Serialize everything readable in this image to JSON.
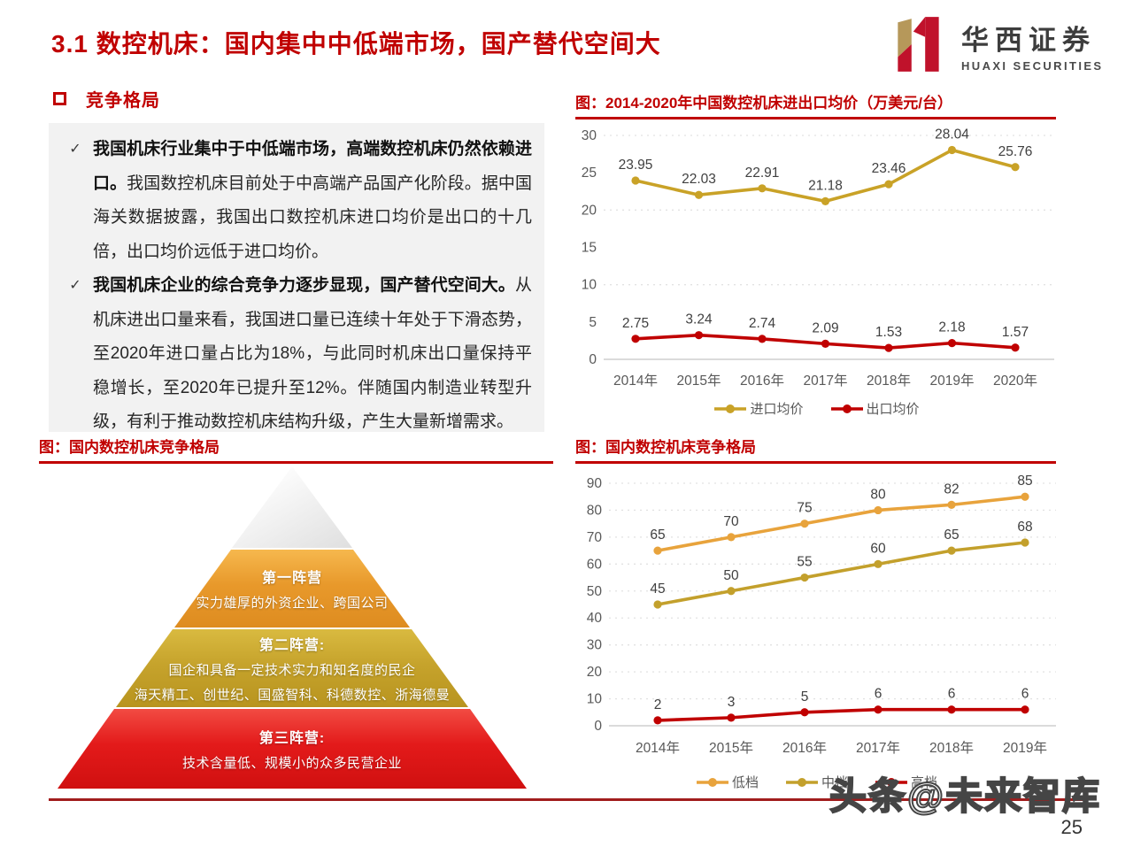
{
  "header": {
    "title": "3.1 数控机床：国内集中中低端市场，国产替代空间大",
    "logo_cn": "华西证券",
    "logo_en": "HUAXI SECURITIES",
    "logo_colors": {
      "gold": "#B6985A",
      "red": "#C0122B"
    }
  },
  "section": {
    "title": "竞争格局"
  },
  "notes": {
    "check_mark": "✓",
    "items": [
      {
        "bold": "我国机床行业集中于中低端市场，高端数控机床仍然依赖进口。",
        "rest": "我国数控机床目前处于中高端产品国产化阶段。据中国海关数据披露，我国出口数控机床进口均价是出口的十几倍，出口均价远低于进口均价。"
      },
      {
        "bold": "我国机床企业的综合竞争力逐步显现，国产替代空间大。",
        "rest": "从机床进出口量来看，我国进口量已连续十年处于下滑态势，至2020年进口量占比为18%，与此同时机床出口量保持平稳增长，至2020年已提升至12%。伴随国内制造业转型升级，有利于推动数控机床结构升级，产生大量新增需求。"
      }
    ]
  },
  "figures": {
    "pyramid_caption": "图：国内数控机床竞争格局"
  },
  "pyramid": {
    "tiers": [
      {
        "title": "第一阵营",
        "line1": "实力雄厚的外资企业、跨国公司",
        "color": "#E8992B"
      },
      {
        "title": "第二阵营:",
        "line1": "国企和具备一定技术实力和知名度的民企",
        "line2": "海天精工、创世纪、国盛智科、科德数控、浙海德曼",
        "color": "#C6A32C"
      },
      {
        "title": "第三阵营:",
        "line1": "技术含量低、规模小的众多民营企业",
        "color": "#E31A1A"
      }
    ]
  },
  "chart_data": [
    {
      "type": "line",
      "title": "图：2014-2020年中国数控机床进出口均价（万美元/台）",
      "categories": [
        "2014年",
        "2015年",
        "2016年",
        "2017年",
        "2018年",
        "2019年",
        "2020年"
      ],
      "series": [
        {
          "name": "进口均价",
          "color": "#C9A227",
          "values": [
            23.95,
            22.03,
            22.91,
            21.18,
            23.46,
            28.04,
            25.76
          ],
          "labels": [
            "23.95",
            "22.03",
            "22.91",
            "21.18",
            "23.46",
            "28.04",
            "25.76"
          ]
        },
        {
          "name": "出口均价",
          "color": "#C00000",
          "values": [
            2.75,
            3.24,
            2.74,
            2.09,
            1.53,
            2.18,
            1.57
          ],
          "labels": [
            "2.75",
            "3.24",
            "2.74",
            "2.09",
            "1.53",
            "2.18",
            "1.57"
          ]
        }
      ],
      "ylim": [
        0,
        30
      ],
      "yticks": [
        0,
        5,
        10,
        15,
        20,
        25,
        30
      ],
      "grid_values": [
        10,
        20,
        30
      ],
      "grid": "dotted",
      "legend_position": "bottom"
    },
    {
      "type": "line",
      "title": "图：国内数控机床竞争格局",
      "categories": [
        "2014年",
        "2015年",
        "2016年",
        "2017年",
        "2018年",
        "2019年"
      ],
      "series": [
        {
          "name": "低档",
          "color": "#E8A33C",
          "values": [
            65,
            70,
            75,
            80,
            82,
            85
          ],
          "labels": [
            "65",
            "70",
            "75",
            "80",
            "82",
            "85"
          ]
        },
        {
          "name": "中档",
          "color": "#C3A02C",
          "values": [
            45,
            50,
            55,
            60,
            65,
            68
          ],
          "labels": [
            "45",
            "50",
            "55",
            "60",
            "65",
            "68"
          ]
        },
        {
          "name": "高档",
          "color": "#C00000",
          "values": [
            2,
            3,
            5,
            6,
            6,
            6
          ],
          "labels": [
            "2",
            "3",
            "5",
            "6",
            "6",
            "6"
          ]
        }
      ],
      "ylim": [
        0,
        90
      ],
      "yticks": [
        0,
        10,
        20,
        30,
        40,
        50,
        60,
        70,
        80,
        90
      ],
      "grid_values": [
        10,
        20,
        30,
        40,
        50,
        60,
        70,
        80,
        90
      ],
      "grid": "dotted",
      "legend_position": "bottom"
    }
  ],
  "footer": {
    "watermark": "头条@未来智库",
    "page_number": "25"
  }
}
